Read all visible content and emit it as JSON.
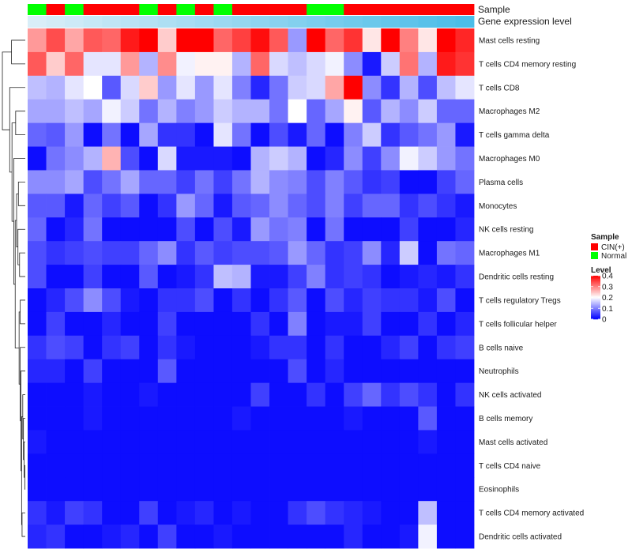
{
  "chart_data": {
    "type": "heatmap",
    "title": "",
    "annotation_tracks": [
      {
        "name": "Sample",
        "values": [
          "Normal",
          "CIN(+)",
          "Normal",
          "CIN(+)",
          "CIN(+)",
          "CIN(+)",
          "Normal",
          "CIN(+)",
          "Normal",
          "CIN(+)",
          "Normal",
          "CIN(+)",
          "CIN(+)",
          "CIN(+)",
          "CIN(+)",
          "Normal",
          "Normal",
          "CIN(+)",
          "CIN(+)",
          "CIN(+)",
          "CIN(+)",
          "CIN(+)",
          "CIN(+)",
          "CIN(+)"
        ]
      },
      {
        "name": "Gene expression level",
        "gradient": [
          "#d9eef8",
          "#4bbde8"
        ]
      }
    ],
    "rows": [
      "Mast cells resting",
      "T cells CD4 memory resting",
      "T cells CD8",
      "Macrophages M2",
      "T cells gamma delta",
      "Macrophages M0",
      "Plasma cells",
      "Monocytes",
      "NK cells resting",
      "Macrophages M1",
      "Dendritic cells resting",
      "T cells regulatory  Tregs",
      "T cells follicular helper",
      "B cells naive",
      "Neutrophils",
      "NK cells activated",
      "B cells memory",
      "Mast cells activated",
      "T cells CD4 naive",
      "Eosinophils",
      "T cells CD4 memory activated",
      "Dendritic cells activated"
    ],
    "values": [
      [
        0.28,
        0.34,
        0.27,
        0.33,
        0.32,
        0.38,
        0.4,
        0.24,
        0.4,
        0.4,
        0.32,
        0.35,
        0.39,
        0.33,
        0.12,
        0.4,
        0.32,
        0.36,
        0.22,
        0.4,
        0.3,
        0.22,
        0.4,
        0.37
      ],
      [
        0.33,
        0.24,
        0.32,
        0.18,
        0.18,
        0.28,
        0.14,
        0.29,
        0.19,
        0.21,
        0.21,
        0.14,
        0.32,
        0.17,
        0.15,
        0.17,
        0.19,
        0.11,
        0.02,
        0.16,
        0.31,
        0.14,
        0.38,
        0.36
      ],
      [
        0.15,
        0.14,
        0.18,
        0.2,
        0.07,
        0.17,
        0.24,
        0.12,
        0.18,
        0.12,
        0.18,
        0.1,
        0.03,
        0.09,
        0.16,
        0.17,
        0.27,
        0.4,
        0.11,
        0.04,
        0.14,
        0.06,
        0.15,
        0.18
      ],
      [
        0.13,
        0.13,
        0.15,
        0.13,
        0.19,
        0.16,
        0.09,
        0.14,
        0.1,
        0.12,
        0.16,
        0.14,
        0.14,
        0.09,
        0.2,
        0.08,
        0.13,
        0.21,
        0.07,
        0.14,
        0.11,
        0.16,
        0.08,
        0.08
      ],
      [
        0.08,
        0.07,
        0.12,
        0.01,
        0.09,
        0.01,
        0.13,
        0.04,
        0.04,
        0.01,
        0.18,
        0.09,
        0.01,
        0.06,
        0.02,
        0.08,
        0.01,
        0.1,
        0.16,
        0.04,
        0.07,
        0.09,
        0.12,
        0.02
      ],
      [
        0.01,
        0.09,
        0.11,
        0.14,
        0.26,
        0.06,
        0.01,
        0.17,
        0.02,
        0.02,
        0.02,
        0.01,
        0.14,
        0.16,
        0.14,
        0.01,
        0.03,
        0.11,
        0.05,
        0.11,
        0.19,
        0.16,
        0.12,
        0.09
      ],
      [
        0.11,
        0.11,
        0.13,
        0.06,
        0.09,
        0.13,
        0.08,
        0.08,
        0.05,
        0.09,
        0.05,
        0.09,
        0.14,
        0.11,
        0.1,
        0.06,
        0.1,
        0.07,
        0.04,
        0.05,
        0.01,
        0.01,
        0.05,
        0.08
      ],
      [
        0.07,
        0.07,
        0.02,
        0.08,
        0.05,
        0.07,
        0.01,
        0.04,
        0.12,
        0.08,
        0.02,
        0.07,
        0.08,
        0.11,
        0.08,
        0.06,
        0.1,
        0.05,
        0.08,
        0.08,
        0.04,
        0.06,
        0.04,
        0.02
      ],
      [
        0.08,
        0.01,
        0.03,
        0.09,
        0.01,
        0.01,
        0.01,
        0.01,
        0.06,
        0.01,
        0.06,
        0.02,
        0.12,
        0.09,
        0.1,
        0.01,
        0.09,
        0.01,
        0.01,
        0.01,
        0.05,
        0.01,
        0.01,
        0.03
      ],
      [
        0.06,
        0.04,
        0.05,
        0.06,
        0.05,
        0.05,
        0.08,
        0.11,
        0.04,
        0.07,
        0.05,
        0.06,
        0.06,
        0.07,
        0.12,
        0.08,
        0.04,
        0.05,
        0.11,
        0.03,
        0.16,
        0.01,
        0.09,
        0.08
      ],
      [
        0.06,
        0.01,
        0.01,
        0.05,
        0.01,
        0.01,
        0.07,
        0.01,
        0.02,
        0.04,
        0.15,
        0.14,
        0.02,
        0.02,
        0.05,
        0.1,
        0.04,
        0.05,
        0.04,
        0.01,
        0.02,
        0.03,
        0.02,
        0.04
      ],
      [
        0.01,
        0.03,
        0.06,
        0.11,
        0.06,
        0.02,
        0.01,
        0.04,
        0.04,
        0.06,
        0.01,
        0.04,
        0.01,
        0.04,
        0.07,
        0.01,
        0.06,
        0.03,
        0.05,
        0.04,
        0.04,
        0.02,
        0.06,
        0.01
      ],
      [
        0.01,
        0.05,
        0.01,
        0.01,
        0.03,
        0.01,
        0.01,
        0.05,
        0.01,
        0.01,
        0.01,
        0.01,
        0.04,
        0.01,
        0.1,
        0.01,
        0.02,
        0.02,
        0.05,
        0.01,
        0.01,
        0.04,
        0.01,
        0.03
      ],
      [
        0.04,
        0.06,
        0.05,
        0.01,
        0.04,
        0.05,
        0.01,
        0.04,
        0.02,
        0.01,
        0.01,
        0.01,
        0.02,
        0.04,
        0.04,
        0.01,
        0.04,
        0.01,
        0.01,
        0.03,
        0.05,
        0.01,
        0.04,
        0.05
      ],
      [
        0.03,
        0.03,
        0.01,
        0.05,
        0.01,
        0.01,
        0.01,
        0.07,
        0.01,
        0.01,
        0.01,
        0.01,
        0.01,
        0.01,
        0.06,
        0.01,
        0.03,
        0.01,
        0.01,
        0.01,
        0.01,
        0.01,
        0.01,
        0.01
      ],
      [
        0.01,
        0.01,
        0.01,
        0.02,
        0.01,
        0.01,
        0.02,
        0.01,
        0.01,
        0.01,
        0.01,
        0.01,
        0.05,
        0.01,
        0.01,
        0.04,
        0.01,
        0.05,
        0.08,
        0.04,
        0.06,
        0.04,
        0.01,
        0.04
      ],
      [
        0.01,
        0.01,
        0.01,
        0.02,
        0.01,
        0.01,
        0.01,
        0.01,
        0.01,
        0.01,
        0.01,
        0.02,
        0.01,
        0.01,
        0.01,
        0.01,
        0.01,
        0.02,
        0.01,
        0.01,
        0.01,
        0.07,
        0.01,
        0.01
      ],
      [
        0.02,
        0.01,
        0.01,
        0.01,
        0.01,
        0.01,
        0.01,
        0.01,
        0.01,
        0.01,
        0.01,
        0.01,
        0.01,
        0.01,
        0.01,
        0.01,
        0.01,
        0.01,
        0.01,
        0.01,
        0.01,
        0.02,
        0.01,
        0.01
      ],
      [
        0.01,
        0.01,
        0.01,
        0.01,
        0.01,
        0.01,
        0.01,
        0.01,
        0.01,
        0.01,
        0.01,
        0.01,
        0.01,
        0.01,
        0.01,
        0.01,
        0.01,
        0.01,
        0.01,
        0.01,
        0.01,
        0.01,
        0.01,
        0.01
      ],
      [
        0.01,
        0.01,
        0.01,
        0.01,
        0.01,
        0.01,
        0.01,
        0.01,
        0.01,
        0.01,
        0.01,
        0.01,
        0.01,
        0.01,
        0.01,
        0.01,
        0.01,
        0.01,
        0.01,
        0.01,
        0.01,
        0.01,
        0.01,
        0.01
      ],
      [
        0.04,
        0.02,
        0.05,
        0.04,
        0.01,
        0.01,
        0.05,
        0.01,
        0.02,
        0.03,
        0.01,
        0.02,
        0.01,
        0.01,
        0.04,
        0.06,
        0.04,
        0.03,
        0.02,
        0.01,
        0.01,
        0.15,
        0.01,
        0.01
      ],
      [
        0.03,
        0.04,
        0.01,
        0.01,
        0.02,
        0.03,
        0.01,
        0.05,
        0.01,
        0.01,
        0.02,
        0.01,
        0.01,
        0.01,
        0.01,
        0.01,
        0.01,
        0.03,
        0.01,
        0.01,
        0.02,
        0.19,
        0.01,
        0.01
      ]
    ],
    "color_scale": {
      "min": 0,
      "max": 0.4,
      "colors": [
        "#0000ff",
        "#ffffff",
        "#ff0000"
      ]
    },
    "legend": {
      "placement": "right",
      "sample_title": "Sample",
      "sample_entries": [
        {
          "label": "CIN(+)",
          "color": "#ff0000"
        },
        {
          "label": "Normal",
          "color": "#00ff00"
        }
      ],
      "level_title": "Level",
      "level_ticks": [
        "0.4",
        "0.3",
        "0.2",
        "0.1",
        "0"
      ],
      "level_tick_values": [
        0.4,
        0.3,
        0.2,
        0.1,
        0
      ]
    },
    "row_dendrogram": {
      "merges": [
        [
          -19,
          -20,
          0.02
        ],
        [
          -18,
          1,
          0.05
        ],
        [
          -17,
          2,
          0.08
        ],
        [
          -16,
          3,
          0.11
        ],
        [
          -21,
          -22,
          0.14
        ],
        [
          4,
          5,
          0.16
        ],
        [
          -15,
          6,
          0.19
        ],
        [
          -14,
          7,
          0.22
        ],
        [
          -12,
          -13,
          0.22
        ],
        [
          8,
          9,
          0.27
        ],
        [
          -10,
          -11,
          0.25
        ],
        [
          -9,
          11,
          0.32
        ],
        [
          -7,
          -8,
          0.3
        ],
        [
          12,
          13,
          0.38
        ],
        [
          10,
          14,
          0.44
        ],
        [
          -6,
          15,
          0.5
        ],
        [
          -4,
          -5,
          0.42
        ],
        [
          16,
          17,
          0.58
        ],
        [
          -3,
          18,
          0.68
        ],
        [
          -1,
          -2,
          0.6
        ],
        [
          19,
          20,
          1.0
        ]
      ]
    }
  }
}
